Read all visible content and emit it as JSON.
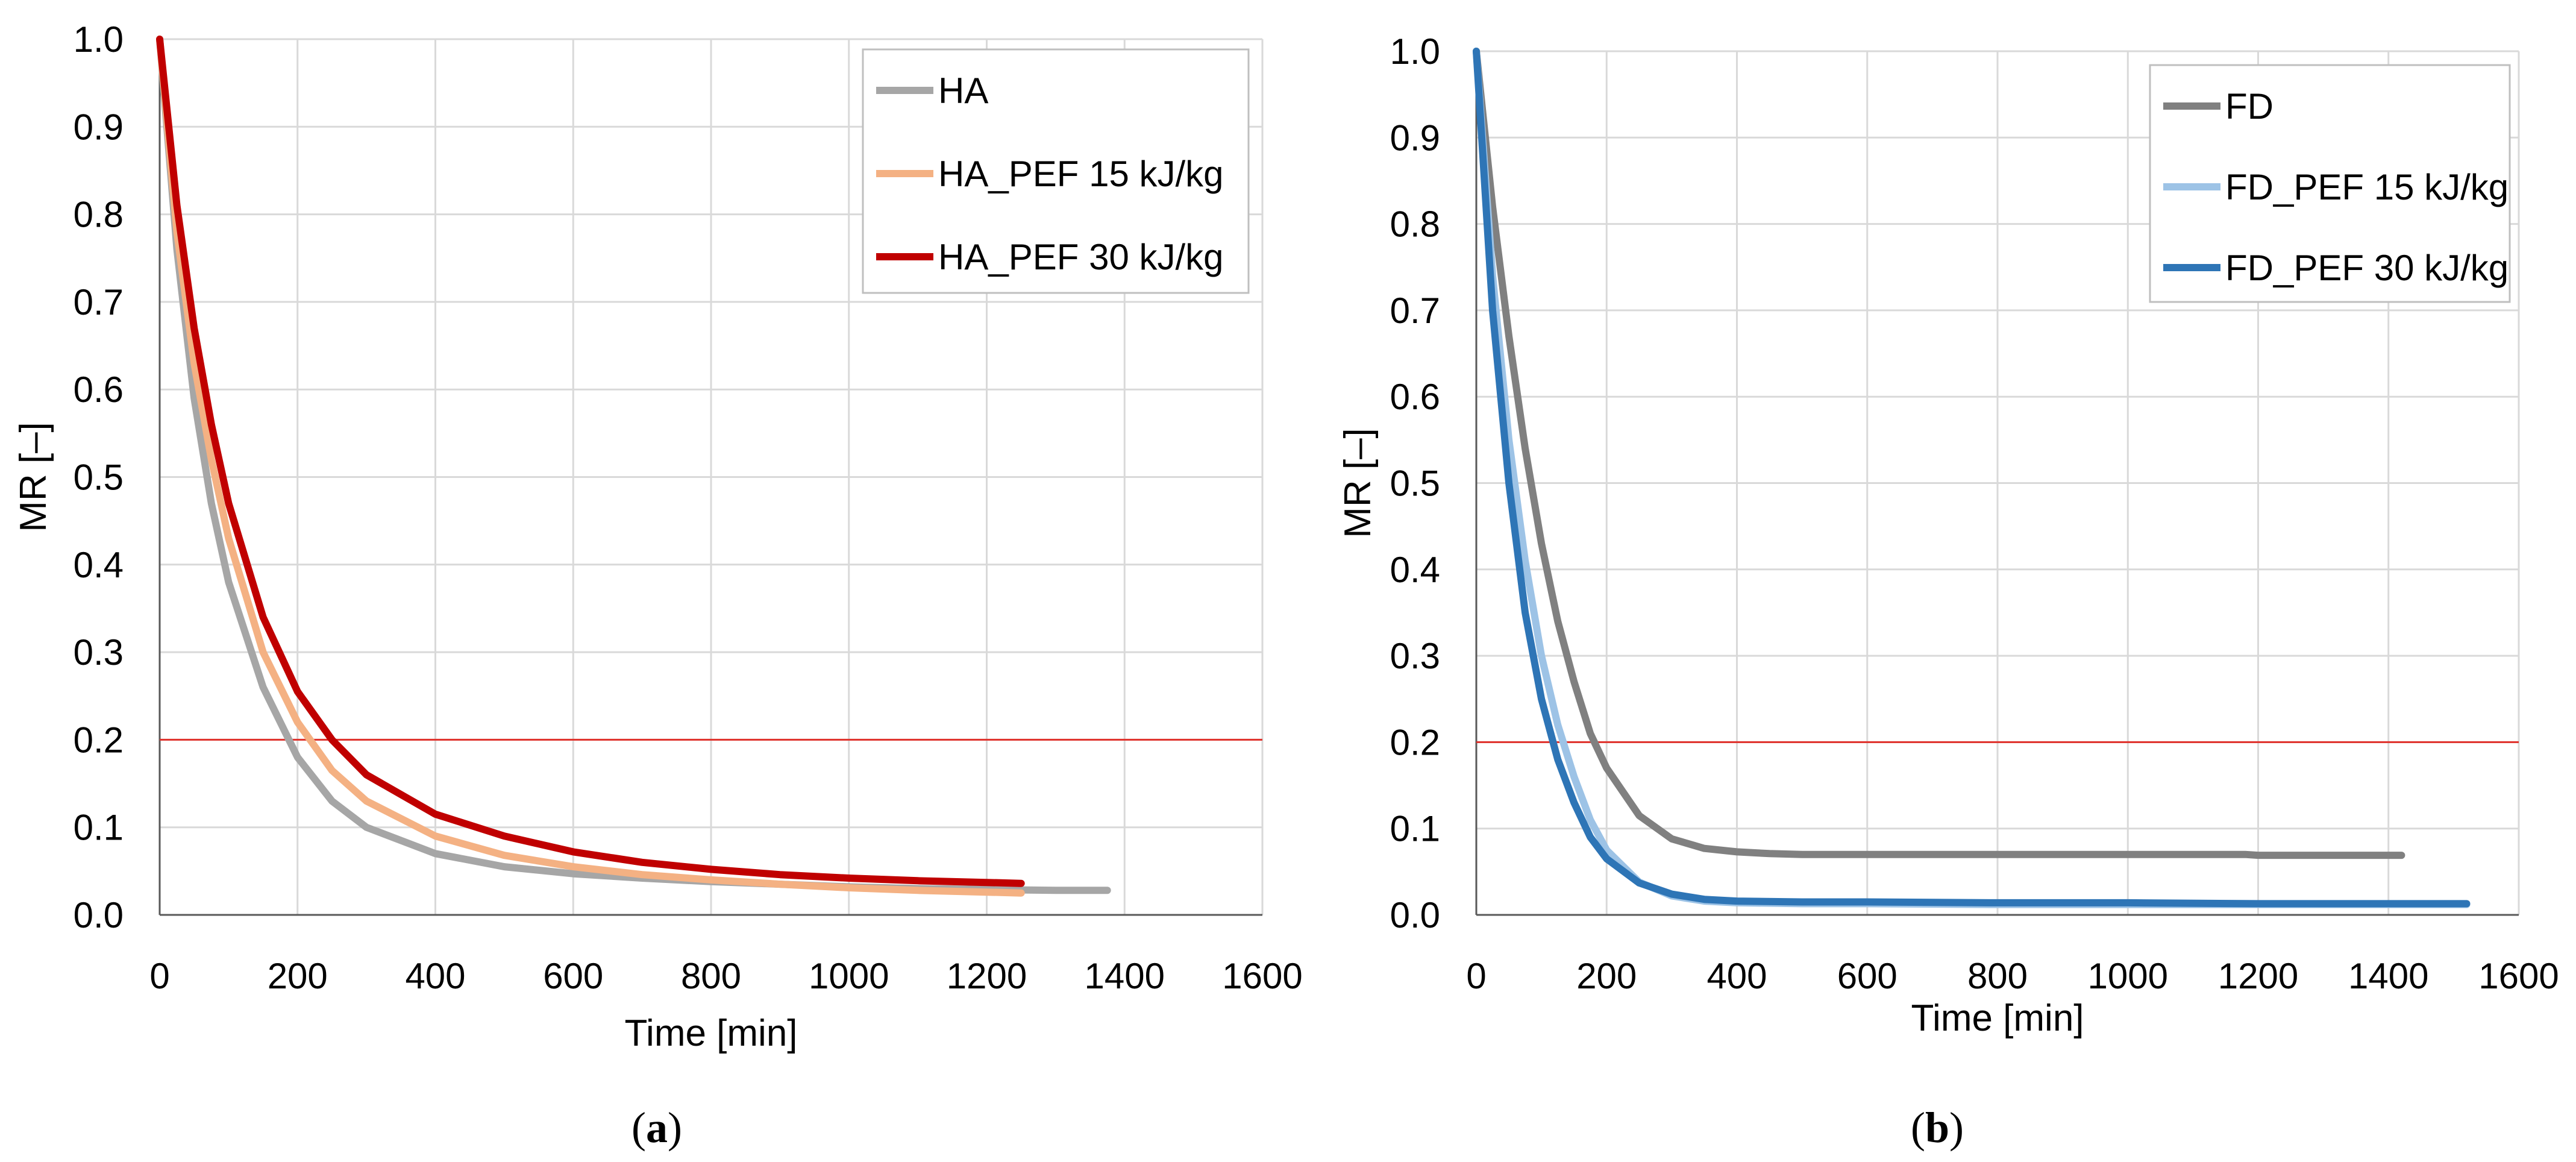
{
  "chart_data": [
    {
      "type": "line",
      "panel": "a",
      "caption_prefix": "(",
      "caption_letter": "a",
      "caption_suffix": ")",
      "xlabel": "Time [min]",
      "ylabel": "MR [–]",
      "xlim": [
        0,
        1600
      ],
      "ylim": [
        0,
        1.0
      ],
      "xticks": [
        0,
        200,
        400,
        600,
        800,
        1000,
        1200,
        1400,
        1600
      ],
      "yticks": [
        0.0,
        0.1,
        0.2,
        0.3,
        0.4,
        0.5,
        0.6,
        0.7,
        0.8,
        0.9,
        1.0
      ],
      "xtick_labels": [
        "0",
        "200",
        "400",
        "600",
        "800",
        "1000",
        "1200",
        "1400",
        "1600"
      ],
      "ytick_labels": [
        "0.0",
        "0.1",
        "0.2",
        "0.3",
        "0.4",
        "0.5",
        "0.6",
        "0.7",
        "0.8",
        "0.9",
        "1.0"
      ],
      "grid": true,
      "legend_position": "top-right",
      "reference_line": {
        "y": 0.2,
        "color": "#e0302a"
      },
      "series": [
        {
          "name": "HA",
          "color": "#a6a6a6",
          "x": [
            0,
            25,
            50,
            75,
            100,
            150,
            200,
            250,
            300,
            400,
            500,
            600,
            700,
            800,
            900,
            1000,
            1100,
            1200,
            1300,
            1375
          ],
          "y": [
            1.0,
            0.76,
            0.59,
            0.47,
            0.38,
            0.26,
            0.18,
            0.13,
            0.1,
            0.07,
            0.055,
            0.047,
            0.042,
            0.038,
            0.035,
            0.032,
            0.03,
            0.029,
            0.028,
            0.028
          ]
        },
        {
          "name": "HA_PEF 15 kJ/kg",
          "color": "#f4b183",
          "x": [
            0,
            25,
            50,
            75,
            100,
            150,
            200,
            250,
            300,
            400,
            500,
            600,
            700,
            800,
            900,
            1000,
            1100,
            1200,
            1250
          ],
          "y": [
            1.0,
            0.78,
            0.63,
            0.52,
            0.43,
            0.3,
            0.22,
            0.165,
            0.13,
            0.09,
            0.068,
            0.055,
            0.046,
            0.04,
            0.035,
            0.031,
            0.028,
            0.026,
            0.025
          ]
        },
        {
          "name": "HA_PEF 30 kJ/kg",
          "color": "#c00000",
          "x": [
            0,
            25,
            50,
            75,
            100,
            150,
            200,
            250,
            300,
            400,
            500,
            600,
            700,
            800,
            900,
            1000,
            1100,
            1200,
            1250
          ],
          "y": [
            1.0,
            0.81,
            0.67,
            0.56,
            0.47,
            0.34,
            0.255,
            0.2,
            0.16,
            0.115,
            0.09,
            0.072,
            0.06,
            0.052,
            0.046,
            0.042,
            0.039,
            0.037,
            0.036
          ]
        }
      ]
    },
    {
      "type": "line",
      "panel": "b",
      "caption_prefix": "(",
      "caption_letter": "b",
      "caption_suffix": ")",
      "xlabel": "Time [min]",
      "ylabel": "MR [–]",
      "xlim": [
        0,
        1600
      ],
      "ylim": [
        0,
        1.0
      ],
      "xticks": [
        0,
        200,
        400,
        600,
        800,
        1000,
        1200,
        1400,
        1600
      ],
      "yticks": [
        0.0,
        0.1,
        0.2,
        0.3,
        0.4,
        0.5,
        0.6,
        0.7,
        0.8,
        0.9,
        1.0
      ],
      "xtick_labels": [
        "0",
        "200",
        "400",
        "600",
        "800",
        "1000",
        "1200",
        "1400",
        "1600"
      ],
      "ytick_labels": [
        "0.0",
        "0.1",
        "0.2",
        "0.3",
        "0.4",
        "0.5",
        "0.6",
        "0.7",
        "0.8",
        "0.9",
        "1.0"
      ],
      "grid": true,
      "legend_position": "top-right",
      "reference_line": {
        "y": 0.2,
        "color": "#e0302a"
      },
      "series": [
        {
          "name": "FD",
          "color": "#808080",
          "x": [
            0,
            25,
            50,
            75,
            100,
            125,
            150,
            175,
            200,
            250,
            300,
            350,
            400,
            450,
            500,
            700,
            900,
            1100,
            1180,
            1200,
            1300,
            1420
          ],
          "y": [
            1.0,
            0.82,
            0.67,
            0.54,
            0.43,
            0.34,
            0.27,
            0.21,
            0.17,
            0.115,
            0.088,
            0.077,
            0.073,
            0.071,
            0.07,
            0.07,
            0.07,
            0.07,
            0.07,
            0.069,
            0.069,
            0.069
          ]
        },
        {
          "name": "FD_PEF 15 kJ/kg",
          "color": "#9dc3e6",
          "x": [
            0,
            25,
            50,
            75,
            100,
            125,
            150,
            175,
            200,
            250,
            300,
            350,
            400,
            500,
            600,
            800,
            1000,
            1200,
            1400,
            1520
          ],
          "y": [
            1.0,
            0.74,
            0.55,
            0.41,
            0.3,
            0.22,
            0.16,
            0.11,
            0.075,
            0.038,
            0.022,
            0.016,
            0.014,
            0.013,
            0.013,
            0.012,
            0.012,
            0.012,
            0.012,
            0.012
          ]
        },
        {
          "name": "FD_PEF 30 kJ/kg",
          "color": "#2e75b6",
          "x": [
            0,
            25,
            50,
            75,
            100,
            125,
            150,
            175,
            200,
            250,
            300,
            350,
            400,
            500,
            600,
            800,
            1000,
            1200,
            1400,
            1520
          ],
          "y": [
            1.0,
            0.7,
            0.5,
            0.35,
            0.25,
            0.18,
            0.13,
            0.09,
            0.065,
            0.037,
            0.024,
            0.018,
            0.016,
            0.015,
            0.015,
            0.014,
            0.014,
            0.013,
            0.013,
            0.013
          ]
        }
      ]
    }
  ]
}
